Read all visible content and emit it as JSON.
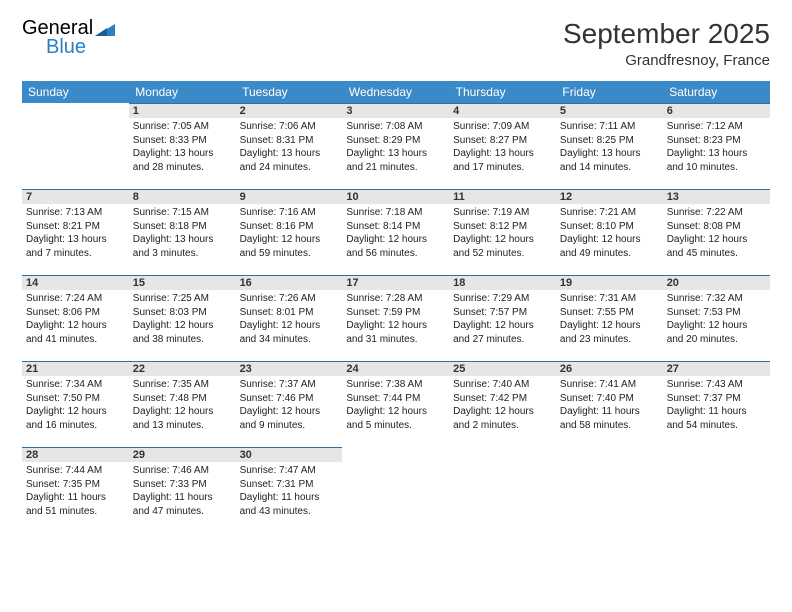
{
  "logo": {
    "general": "General",
    "blue": "Blue"
  },
  "title": "September 2025",
  "location": "Grandfresnoy, France",
  "colors": {
    "header_bg": "#3a8ac9",
    "header_text": "#ffffff",
    "daynum_bg": "#e6e6e6",
    "daynum_border": "#2f6fa3",
    "logo_gray": "#6b6b6b",
    "logo_blue": "#2b7fc3",
    "text": "#222222",
    "page_bg": "#ffffff"
  },
  "weekdays": [
    "Sunday",
    "Monday",
    "Tuesday",
    "Wednesday",
    "Thursday",
    "Friday",
    "Saturday"
  ],
  "weeks": [
    [
      null,
      {
        "n": "1",
        "sr": "7:05 AM",
        "ss": "8:33 PM",
        "dl": "13 hours and 28 minutes."
      },
      {
        "n": "2",
        "sr": "7:06 AM",
        "ss": "8:31 PM",
        "dl": "13 hours and 24 minutes."
      },
      {
        "n": "3",
        "sr": "7:08 AM",
        "ss": "8:29 PM",
        "dl": "13 hours and 21 minutes."
      },
      {
        "n": "4",
        "sr": "7:09 AM",
        "ss": "8:27 PM",
        "dl": "13 hours and 17 minutes."
      },
      {
        "n": "5",
        "sr": "7:11 AM",
        "ss": "8:25 PM",
        "dl": "13 hours and 14 minutes."
      },
      {
        "n": "6",
        "sr": "7:12 AM",
        "ss": "8:23 PM",
        "dl": "13 hours and 10 minutes."
      }
    ],
    [
      {
        "n": "7",
        "sr": "7:13 AM",
        "ss": "8:21 PM",
        "dl": "13 hours and 7 minutes."
      },
      {
        "n": "8",
        "sr": "7:15 AM",
        "ss": "8:18 PM",
        "dl": "13 hours and 3 minutes."
      },
      {
        "n": "9",
        "sr": "7:16 AM",
        "ss": "8:16 PM",
        "dl": "12 hours and 59 minutes."
      },
      {
        "n": "10",
        "sr": "7:18 AM",
        "ss": "8:14 PM",
        "dl": "12 hours and 56 minutes."
      },
      {
        "n": "11",
        "sr": "7:19 AM",
        "ss": "8:12 PM",
        "dl": "12 hours and 52 minutes."
      },
      {
        "n": "12",
        "sr": "7:21 AM",
        "ss": "8:10 PM",
        "dl": "12 hours and 49 minutes."
      },
      {
        "n": "13",
        "sr": "7:22 AM",
        "ss": "8:08 PM",
        "dl": "12 hours and 45 minutes."
      }
    ],
    [
      {
        "n": "14",
        "sr": "7:24 AM",
        "ss": "8:06 PM",
        "dl": "12 hours and 41 minutes."
      },
      {
        "n": "15",
        "sr": "7:25 AM",
        "ss": "8:03 PM",
        "dl": "12 hours and 38 minutes."
      },
      {
        "n": "16",
        "sr": "7:26 AM",
        "ss": "8:01 PM",
        "dl": "12 hours and 34 minutes."
      },
      {
        "n": "17",
        "sr": "7:28 AM",
        "ss": "7:59 PM",
        "dl": "12 hours and 31 minutes."
      },
      {
        "n": "18",
        "sr": "7:29 AM",
        "ss": "7:57 PM",
        "dl": "12 hours and 27 minutes."
      },
      {
        "n": "19",
        "sr": "7:31 AM",
        "ss": "7:55 PM",
        "dl": "12 hours and 23 minutes."
      },
      {
        "n": "20",
        "sr": "7:32 AM",
        "ss": "7:53 PM",
        "dl": "12 hours and 20 minutes."
      }
    ],
    [
      {
        "n": "21",
        "sr": "7:34 AM",
        "ss": "7:50 PM",
        "dl": "12 hours and 16 minutes."
      },
      {
        "n": "22",
        "sr": "7:35 AM",
        "ss": "7:48 PM",
        "dl": "12 hours and 13 minutes."
      },
      {
        "n": "23",
        "sr": "7:37 AM",
        "ss": "7:46 PM",
        "dl": "12 hours and 9 minutes."
      },
      {
        "n": "24",
        "sr": "7:38 AM",
        "ss": "7:44 PM",
        "dl": "12 hours and 5 minutes."
      },
      {
        "n": "25",
        "sr": "7:40 AM",
        "ss": "7:42 PM",
        "dl": "12 hours and 2 minutes."
      },
      {
        "n": "26",
        "sr": "7:41 AM",
        "ss": "7:40 PM",
        "dl": "11 hours and 58 minutes."
      },
      {
        "n": "27",
        "sr": "7:43 AM",
        "ss": "7:37 PM",
        "dl": "11 hours and 54 minutes."
      }
    ],
    [
      {
        "n": "28",
        "sr": "7:44 AM",
        "ss": "7:35 PM",
        "dl": "11 hours and 51 minutes."
      },
      {
        "n": "29",
        "sr": "7:46 AM",
        "ss": "7:33 PM",
        "dl": "11 hours and 47 minutes."
      },
      {
        "n": "30",
        "sr": "7:47 AM",
        "ss": "7:31 PM",
        "dl": "11 hours and 43 minutes."
      },
      null,
      null,
      null,
      null
    ]
  ],
  "labels": {
    "sunrise": "Sunrise:",
    "sunset": "Sunset:",
    "daylight": "Daylight:"
  }
}
